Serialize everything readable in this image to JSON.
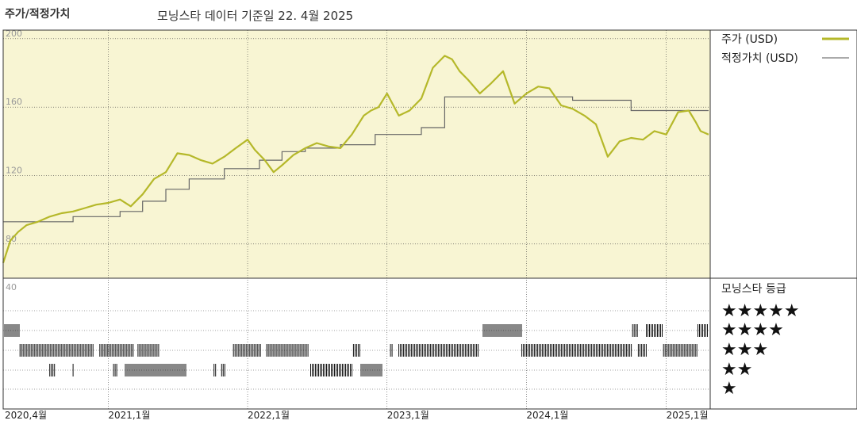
{
  "header": {
    "title": "주가/적정가치",
    "subtitle": "모닝스타 데이터 기준일 22. 4월 2025"
  },
  "legend": {
    "price_label": "주가 (USD)",
    "fair_label": "적정가치 (USD)"
  },
  "rating": {
    "title": "모닝스타 등급",
    "axis_label": "40",
    "levels": [
      "★★★★★",
      "★★★★",
      "★★★",
      "★★",
      "★"
    ]
  },
  "colors": {
    "price": "#b5b82a",
    "fair": "#666666",
    "upper_bg": "#f8f5d3",
    "grid": "#444444"
  },
  "chart_data": {
    "type": "line",
    "x_unit": "date",
    "y_ticks": [
      80,
      120,
      160,
      200
    ],
    "ylim": [
      60,
      205
    ],
    "x_range": [
      "2020-04-01",
      "2025-04-22"
    ],
    "x_ticks": [
      {
        "date": "2020-04-01",
        "label": "2020,4월"
      },
      {
        "date": "2021-01-01",
        "label": "2021,1월"
      },
      {
        "date": "2022-01-01",
        "label": "2022,1월"
      },
      {
        "date": "2023-01-01",
        "label": "2023,1월"
      },
      {
        "date": "2024-01-01",
        "label": "2024,1월"
      },
      {
        "date": "2025-01-01",
        "label": "2025,1월"
      }
    ],
    "series": [
      {
        "name": "주가 (USD)",
        "points": [
          [
            "2020-04-01",
            69
          ],
          [
            "2020-04-20",
            82
          ],
          [
            "2020-05-10",
            87
          ],
          [
            "2020-06-01",
            91
          ],
          [
            "2020-07-01",
            93
          ],
          [
            "2020-08-01",
            96
          ],
          [
            "2020-09-01",
            98
          ],
          [
            "2020-10-01",
            99
          ],
          [
            "2020-11-01",
            101
          ],
          [
            "2020-12-01",
            103
          ],
          [
            "2021-01-01",
            104
          ],
          [
            "2021-02-01",
            106
          ],
          [
            "2021-03-01",
            102
          ],
          [
            "2021-04-01",
            109
          ],
          [
            "2021-05-01",
            118
          ],
          [
            "2021-06-01",
            122
          ],
          [
            "2021-07-01",
            133
          ],
          [
            "2021-08-01",
            132
          ],
          [
            "2021-09-01",
            129
          ],
          [
            "2021-10-01",
            127
          ],
          [
            "2021-11-01",
            131
          ],
          [
            "2021-12-01",
            136
          ],
          [
            "2022-01-01",
            141
          ],
          [
            "2022-01-20",
            135
          ],
          [
            "2022-02-15",
            129
          ],
          [
            "2022-03-10",
            122
          ],
          [
            "2022-04-01",
            126
          ],
          [
            "2022-05-01",
            132
          ],
          [
            "2022-06-01",
            136
          ],
          [
            "2022-07-01",
            139
          ],
          [
            "2022-08-01",
            137
          ],
          [
            "2022-09-01",
            136
          ],
          [
            "2022-10-01",
            144
          ],
          [
            "2022-11-01",
            155
          ],
          [
            "2022-11-20",
            158
          ],
          [
            "2022-12-10",
            160
          ],
          [
            "2023-01-01",
            168
          ],
          [
            "2023-02-01",
            155
          ],
          [
            "2023-03-01",
            158
          ],
          [
            "2023-04-01",
            165
          ],
          [
            "2023-05-01",
            183
          ],
          [
            "2023-06-01",
            190
          ],
          [
            "2023-06-20",
            188
          ],
          [
            "2023-07-10",
            181
          ],
          [
            "2023-08-01",
            176
          ],
          [
            "2023-09-01",
            168
          ],
          [
            "2023-10-01",
            174
          ],
          [
            "2023-11-01",
            181
          ],
          [
            "2023-12-01",
            162
          ],
          [
            "2024-01-01",
            168
          ],
          [
            "2024-02-01",
            172
          ],
          [
            "2024-03-01",
            171
          ],
          [
            "2024-04-01",
            161
          ],
          [
            "2024-05-01",
            159
          ],
          [
            "2024-06-01",
            155
          ],
          [
            "2024-07-01",
            150
          ],
          [
            "2024-08-01",
            131
          ],
          [
            "2024-09-01",
            140
          ],
          [
            "2024-10-01",
            142
          ],
          [
            "2024-11-01",
            141
          ],
          [
            "2024-12-01",
            146
          ],
          [
            "2025-01-01",
            144
          ],
          [
            "2025-02-01",
            157
          ],
          [
            "2025-03-01",
            158
          ],
          [
            "2025-03-20",
            151
          ],
          [
            "2025-04-01",
            146
          ],
          [
            "2025-04-22",
            144
          ]
        ]
      },
      {
        "name": "적정가치 (USD)",
        "points": [
          [
            "2020-04-01",
            93
          ],
          [
            "2020-10-01",
            93
          ],
          [
            "2020-10-01",
            96
          ],
          [
            "2021-02-01",
            96
          ],
          [
            "2021-02-01",
            99
          ],
          [
            "2021-04-01",
            99
          ],
          [
            "2021-04-01",
            105
          ],
          [
            "2021-06-01",
            105
          ],
          [
            "2021-06-01",
            112
          ],
          [
            "2021-08-01",
            112
          ],
          [
            "2021-08-01",
            118
          ],
          [
            "2021-11-01",
            118
          ],
          [
            "2021-11-01",
            124
          ],
          [
            "2022-02-01",
            124
          ],
          [
            "2022-02-01",
            129
          ],
          [
            "2022-04-01",
            129
          ],
          [
            "2022-04-01",
            134
          ],
          [
            "2022-06-01",
            134
          ],
          [
            "2022-06-01",
            136
          ],
          [
            "2022-09-01",
            136
          ],
          [
            "2022-09-01",
            138
          ],
          [
            "2022-12-01",
            138
          ],
          [
            "2022-12-01",
            144
          ],
          [
            "2023-04-01",
            144
          ],
          [
            "2023-04-01",
            148
          ],
          [
            "2023-06-01",
            148
          ],
          [
            "2023-06-01",
            166
          ],
          [
            "2024-05-01",
            166
          ],
          [
            "2024-05-01",
            164
          ],
          [
            "2024-10-01",
            164
          ],
          [
            "2024-10-01",
            158
          ],
          [
            "2025-04-22",
            158
          ]
        ]
      }
    ],
    "rating_bands": [
      {
        "stars": 5,
        "periods": [
          [
            "2020-04-01",
            "2020-05-15"
          ],
          [
            "2023-09-10",
            "2023-12-20"
          ],
          [
            "2024-10-05",
            "2024-10-20"
          ],
          [
            "2024-11-10",
            "2024-12-25"
          ],
          [
            "2025-03-25",
            "2025-04-22"
          ]
        ]
      },
      {
        "stars": 4,
        "periods": [
          [
            "2020-05-15",
            "2020-11-25"
          ],
          [
            "2020-12-10",
            "2021-03-10"
          ],
          [
            "2021-03-20",
            "2021-05-15"
          ],
          [
            "2021-11-25",
            "2022-02-05"
          ],
          [
            "2022-02-20",
            "2022-06-10"
          ],
          [
            "2022-10-05",
            "2022-10-25"
          ],
          [
            "2023-01-10",
            "2023-01-15"
          ],
          [
            "2023-02-01",
            "2023-08-30"
          ],
          [
            "2023-12-20",
            "2024-10-05"
          ],
          [
            "2024-10-20",
            "2024-11-10"
          ],
          [
            "2024-12-25",
            "2025-03-25"
          ]
        ]
      },
      {
        "stars": 3,
        "periods": [
          [
            "2020-08-01",
            "2020-08-15"
          ],
          [
            "2020-10-01",
            "2020-10-05"
          ],
          [
            "2021-01-15",
            "2021-01-25"
          ],
          [
            "2021-02-15",
            "2021-07-25"
          ],
          [
            "2021-10-05",
            "2021-10-10"
          ],
          [
            "2021-10-25",
            "2021-11-05"
          ],
          [
            "2022-06-15",
            "2022-10-05"
          ],
          [
            "2022-10-25",
            "2022-12-20"
          ]
        ]
      }
    ]
  }
}
